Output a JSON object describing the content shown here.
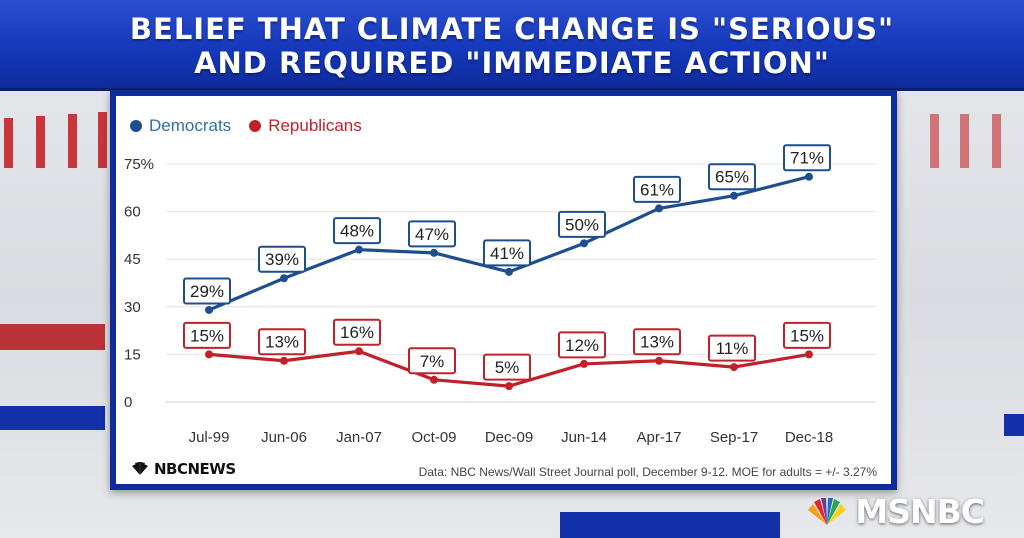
{
  "header": {
    "title_line1": "BELIEF THAT CLIMATE CHANGE IS \"SERIOUS\"",
    "title_line2": "AND REQUIRED \"IMMEDIATE ACTION\""
  },
  "colors": {
    "democrats": "#1f4e8f",
    "republicans": "#c0222b",
    "frame": "#0f2c9c"
  },
  "chart_data": {
    "type": "line",
    "categories": [
      "Jul-99",
      "Jun-06",
      "Jan-07",
      "Oct-09",
      "Dec-09",
      "Jun-14",
      "Apr-17",
      "Sep-17",
      "Dec-18"
    ],
    "series": [
      {
        "name": "Democrats",
        "values": [
          29,
          39,
          48,
          47,
          41,
          50,
          61,
          65,
          71
        ]
      },
      {
        "name": "Republicans",
        "values": [
          15,
          13,
          16,
          7,
          5,
          12,
          13,
          11,
          15
        ]
      }
    ],
    "data_labels": {
      "Democrats": [
        "29%",
        "39%",
        "48%",
        "47%",
        "41%",
        "50%",
        "61%",
        "65%",
        "71%"
      ],
      "Republicans": [
        "15%",
        "13%",
        "16%",
        "7%",
        "5%",
        "12%",
        "13%",
        "11%",
        "15%"
      ]
    },
    "y_ticks": [
      "0",
      "15",
      "30",
      "45",
      "60",
      "75%"
    ],
    "ylim": [
      0,
      75
    ],
    "grid": true,
    "legend_position": "top-left"
  },
  "footer": {
    "logo_text": "NBCNEWS",
    "source": "Data: NBC News/Wall Street Journal poll, December 9-12. MOE for adults = +/- 3.27%"
  },
  "network": {
    "logo_text": "MSNBC"
  }
}
